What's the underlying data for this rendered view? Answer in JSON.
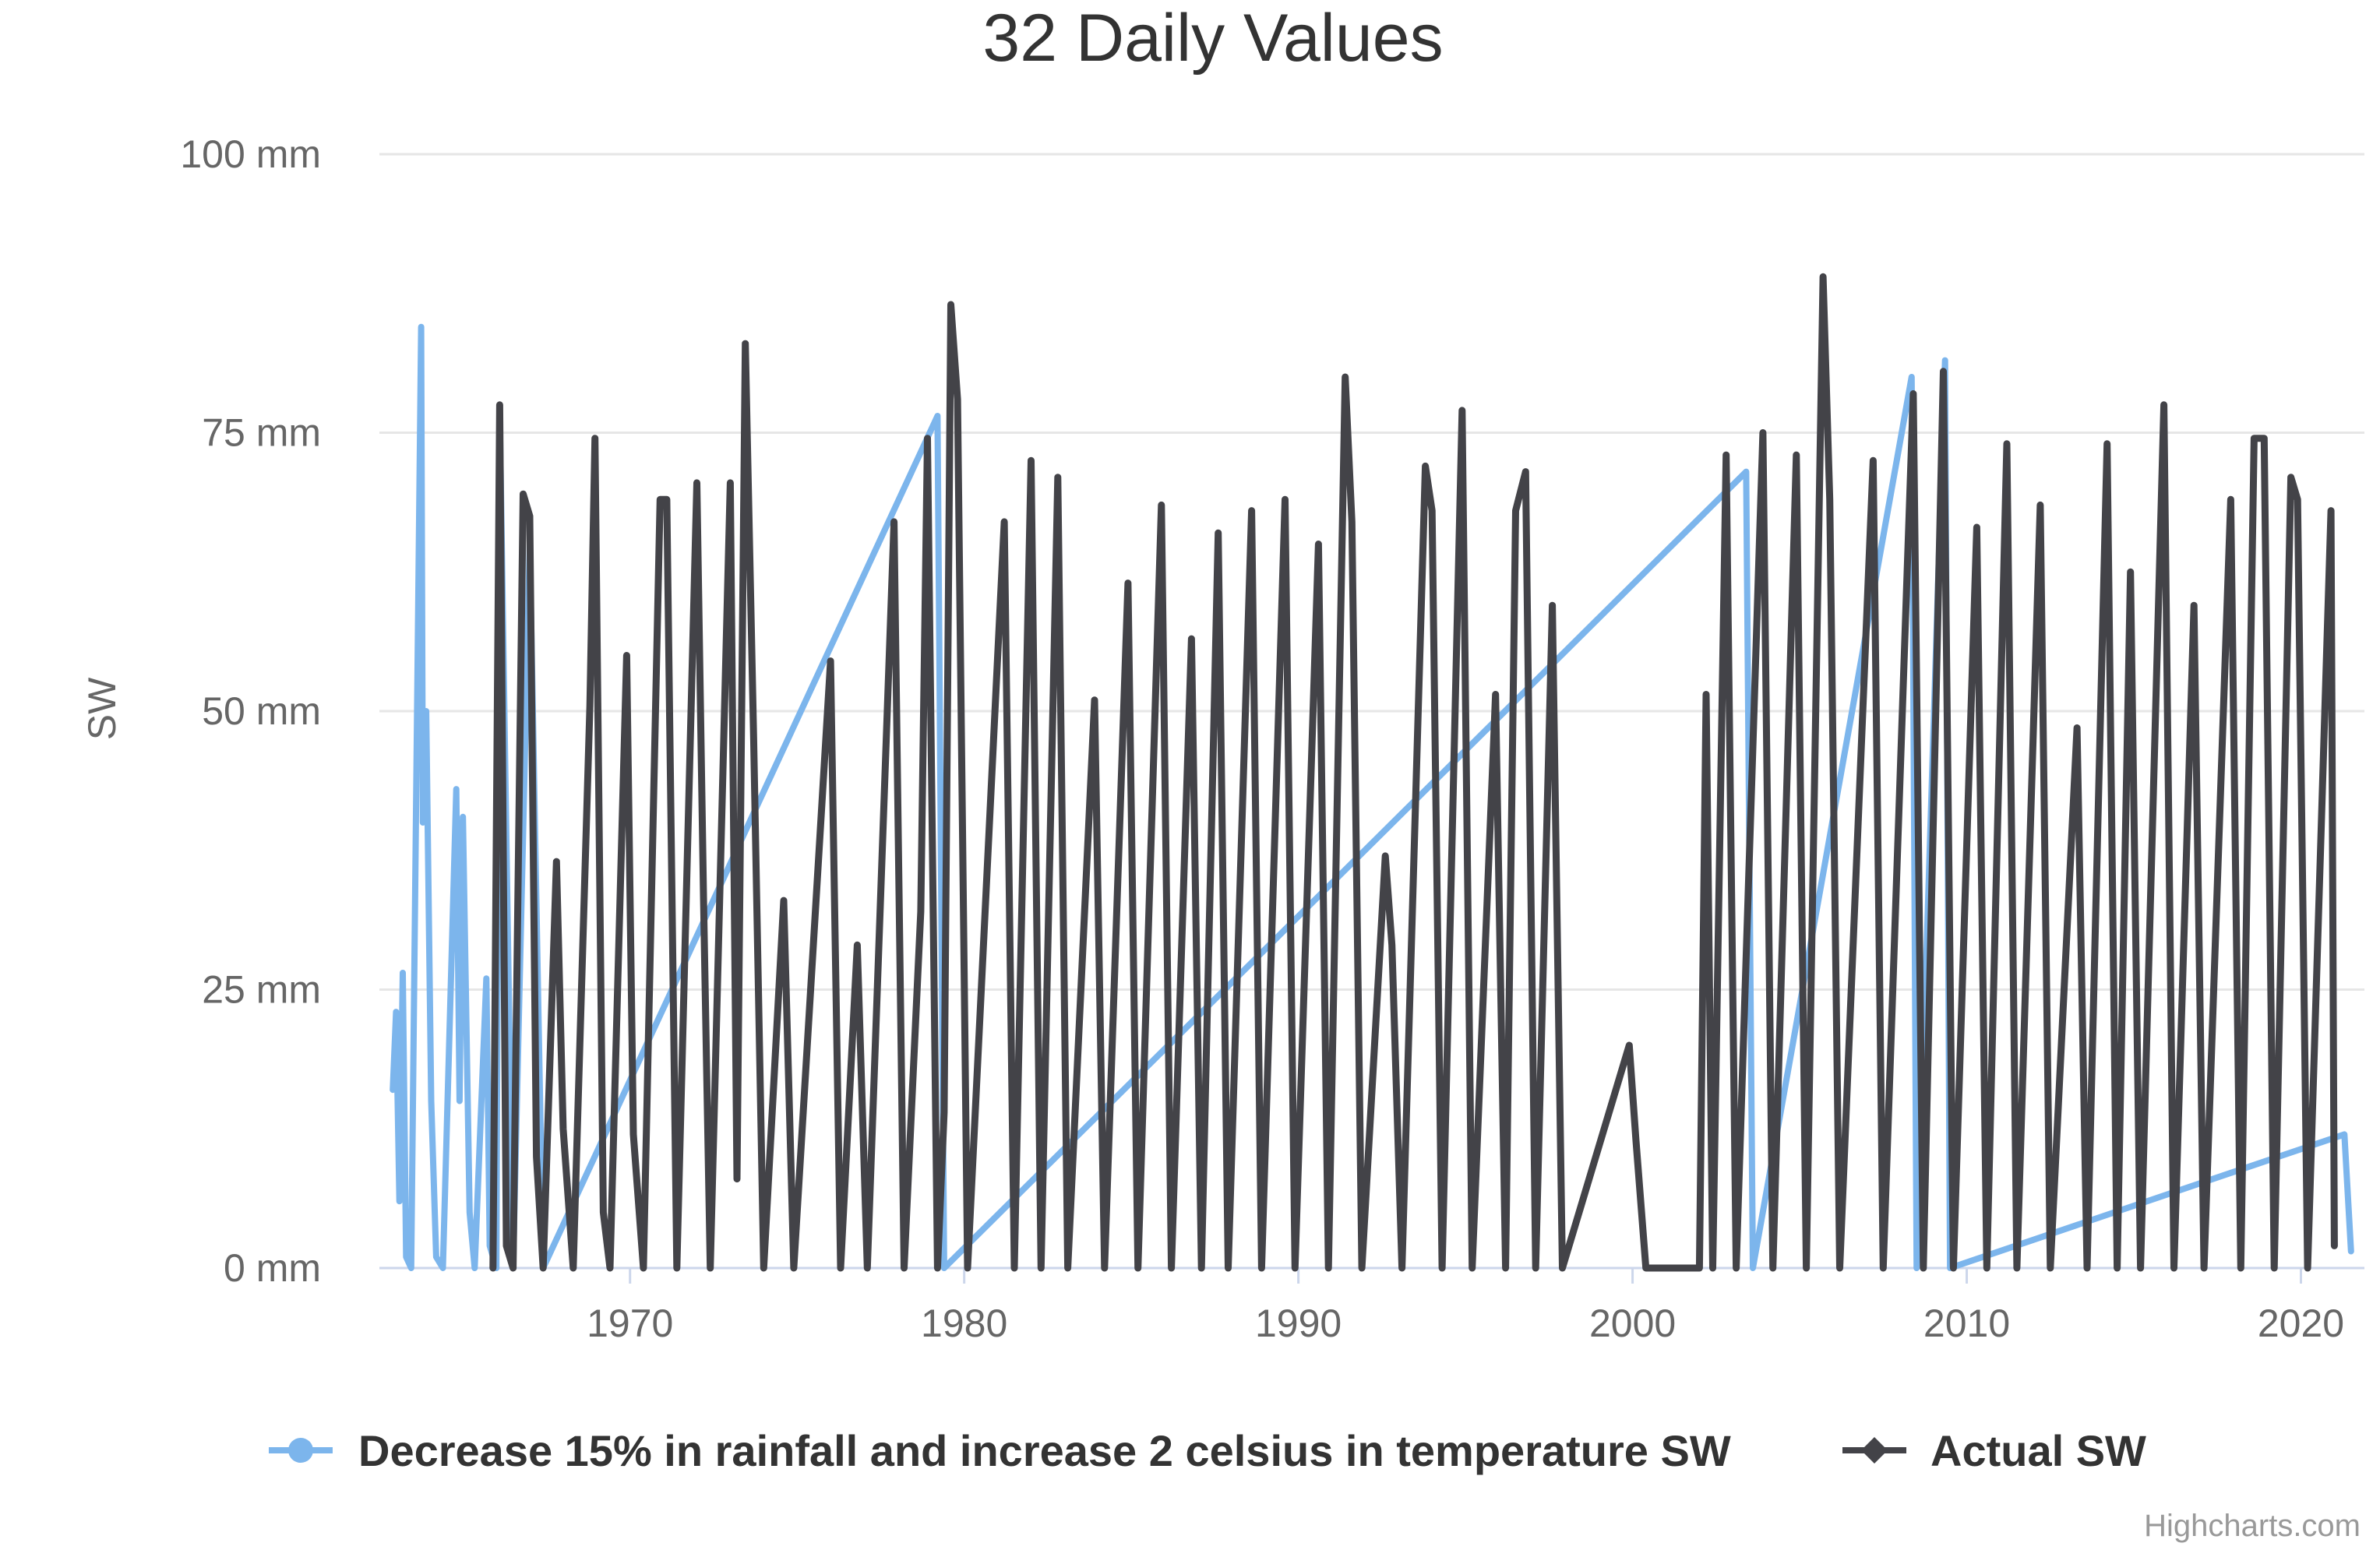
{
  "chart_data": {
    "type": "line",
    "title": "32 Daily Values",
    "xlabel": "",
    "ylabel": "SW",
    "ylim": [
      0,
      100
    ],
    "y_ticks": [
      "0 mm",
      "25 mm",
      "50 mm",
      "75 mm",
      "100 mm"
    ],
    "y_tick_values": [
      0,
      25,
      50,
      75,
      100
    ],
    "x_ticks": [
      "1970",
      "1980",
      "1990",
      "2000",
      "2010",
      "2020"
    ],
    "x_tick_values": [
      1970,
      1980,
      1990,
      2000,
      2010,
      2020
    ],
    "xlim": [
      1962.5,
      2021.9
    ],
    "grid": true,
    "legend_position": "bottom",
    "credits": "Highcharts.com",
    "series": [
      {
        "name": "Decrease 15% in rainfall and increase 2 celsius in temperature SW",
        "color": "#7cb5ec",
        "marker": "circle",
        "points": [
          [
            1962.9,
            16
          ],
          [
            1963.0,
            23
          ],
          [
            1963.1,
            6
          ],
          [
            1963.2,
            26.5
          ],
          [
            1963.3,
            1
          ],
          [
            1963.45,
            0
          ],
          [
            1963.75,
            84.5
          ],
          [
            1963.8,
            40
          ],
          [
            1963.9,
            50
          ],
          [
            1964.05,
            15
          ],
          [
            1964.2,
            1
          ],
          [
            1964.4,
            0
          ],
          [
            1964.8,
            43
          ],
          [
            1964.9,
            15
          ],
          [
            1965.0,
            40.5
          ],
          [
            1965.2,
            5
          ],
          [
            1965.35,
            0
          ],
          [
            1965.7,
            26
          ],
          [
            1965.8,
            2
          ],
          [
            1966.0,
            0
          ],
          [
            1966.1,
            77
          ],
          [
            1966.5,
            0
          ],
          [
            1967.0,
            65
          ],
          [
            1967.4,
            0
          ],
          [
            1979.2,
            76.5
          ],
          [
            1979.4,
            0
          ],
          [
            2003.4,
            71.5
          ],
          [
            2003.6,
            0
          ],
          [
            2008.35,
            80
          ],
          [
            2008.5,
            0
          ],
          [
            2009.35,
            81.5
          ],
          [
            2009.5,
            0
          ],
          [
            2021.3,
            12
          ],
          [
            2021.5,
            1.5
          ]
        ]
      },
      {
        "name": "Actual SW",
        "color": "#434348",
        "marker": "diamond",
        "points": [
          [
            1965.9,
            0
          ],
          [
            1966.1,
            77.5
          ],
          [
            1966.3,
            2
          ],
          [
            1966.5,
            0
          ],
          [
            1966.8,
            69.5
          ],
          [
            1967.0,
            67.5
          ],
          [
            1967.2,
            10
          ],
          [
            1967.4,
            0
          ],
          [
            1967.8,
            36.5
          ],
          [
            1968.0,
            12.5
          ],
          [
            1968.3,
            0
          ],
          [
            1968.8,
            50.5
          ],
          [
            1968.95,
            74.5
          ],
          [
            1969.2,
            5
          ],
          [
            1969.4,
            0
          ],
          [
            1969.9,
            55
          ],
          [
            1970.1,
            12
          ],
          [
            1970.4,
            0
          ],
          [
            1970.9,
            69
          ],
          [
            1971.1,
            69
          ],
          [
            1971.4,
            0
          ],
          [
            1972.0,
            70.5
          ],
          [
            1972.2,
            33
          ],
          [
            1972.4,
            0
          ],
          [
            1973.0,
            70.5
          ],
          [
            1973.2,
            8
          ],
          [
            1973.45,
            83
          ],
          [
            1973.7,
            47.5
          ],
          [
            1974.0,
            0
          ],
          [
            1974.6,
            33
          ],
          [
            1974.9,
            0
          ],
          [
            1976.0,
            54.5
          ],
          [
            1976.3,
            0
          ],
          [
            1976.8,
            29
          ],
          [
            1977.1,
            0
          ],
          [
            1977.9,
            67
          ],
          [
            1978.2,
            0
          ],
          [
            1978.7,
            32
          ],
          [
            1978.9,
            74.5
          ],
          [
            1979.2,
            0
          ],
          [
            1979.4,
            14
          ],
          [
            1979.6,
            86.5
          ],
          [
            1979.8,
            78
          ],
          [
            1980.1,
            0
          ],
          [
            1981.2,
            67
          ],
          [
            1981.5,
            0
          ],
          [
            1982.0,
            72.5
          ],
          [
            1982.3,
            0
          ],
          [
            1982.8,
            71
          ],
          [
            1983.1,
            0
          ],
          [
            1983.9,
            51
          ],
          [
            1984.2,
            0
          ],
          [
            1984.9,
            61.5
          ],
          [
            1985.2,
            0
          ],
          [
            1985.9,
            68.5
          ],
          [
            1986.2,
            0
          ],
          [
            1986.8,
            56.5
          ],
          [
            1987.1,
            0
          ],
          [
            1987.6,
            66
          ],
          [
            1987.9,
            0
          ],
          [
            1988.6,
            68
          ],
          [
            1988.9,
            0
          ],
          [
            1989.6,
            69
          ],
          [
            1989.9,
            0
          ],
          [
            1990.6,
            65
          ],
          [
            1990.9,
            0
          ],
          [
            1991.4,
            80
          ],
          [
            1991.6,
            67
          ],
          [
            1991.9,
            0
          ],
          [
            1992.6,
            37
          ],
          [
            1992.8,
            29
          ],
          [
            1993.1,
            0
          ],
          [
            1993.8,
            72
          ],
          [
            1994.0,
            68
          ],
          [
            1994.3,
            0
          ],
          [
            1994.9,
            77
          ],
          [
            1995.2,
            0
          ],
          [
            1995.9,
            51.5
          ],
          [
            1996.2,
            0
          ],
          [
            1996.5,
            68
          ],
          [
            1996.8,
            71.5
          ],
          [
            1997.1,
            0
          ],
          [
            1997.6,
            59.5
          ],
          [
            1997.9,
            0
          ],
          [
            1999.9,
            20
          ],
          [
            2000.1,
            11.5
          ],
          [
            2000.4,
            0
          ],
          [
            2002.0,
            0
          ],
          [
            2002.2,
            51.5
          ],
          [
            2002.4,
            0
          ],
          [
            2002.8,
            73
          ],
          [
            2003.1,
            0
          ],
          [
            2003.9,
            75
          ],
          [
            2004.2,
            0
          ],
          [
            2004.9,
            73
          ],
          [
            2005.2,
            0
          ],
          [
            2005.7,
            89
          ],
          [
            2005.9,
            69
          ],
          [
            2006.2,
            0
          ],
          [
            2007.2,
            72.5
          ],
          [
            2007.5,
            0
          ],
          [
            2008.4,
            78.5
          ],
          [
            2008.7,
            0
          ],
          [
            2009.3,
            80.5
          ],
          [
            2009.6,
            0
          ],
          [
            2010.3,
            66.5
          ],
          [
            2010.6,
            0
          ],
          [
            2011.2,
            74
          ],
          [
            2011.5,
            0
          ],
          [
            2012.2,
            68.5
          ],
          [
            2012.5,
            0
          ],
          [
            2013.3,
            48.5
          ],
          [
            2013.6,
            0
          ],
          [
            2014.2,
            74
          ],
          [
            2014.5,
            0
          ],
          [
            2014.9,
            62.5
          ],
          [
            2015.2,
            0
          ],
          [
            2015.9,
            77.5
          ],
          [
            2016.2,
            0
          ],
          [
            2016.8,
            59.5
          ],
          [
            2017.1,
            0
          ],
          [
            2017.9,
            69
          ],
          [
            2018.2,
            0
          ],
          [
            2018.6,
            74.5
          ],
          [
            2018.9,
            74.5
          ],
          [
            2019.2,
            0
          ],
          [
            2019.7,
            71
          ],
          [
            2019.9,
            69
          ],
          [
            2020.2,
            0
          ],
          [
            2020.9,
            68
          ],
          [
            2021.0,
            2
          ]
        ]
      }
    ]
  }
}
